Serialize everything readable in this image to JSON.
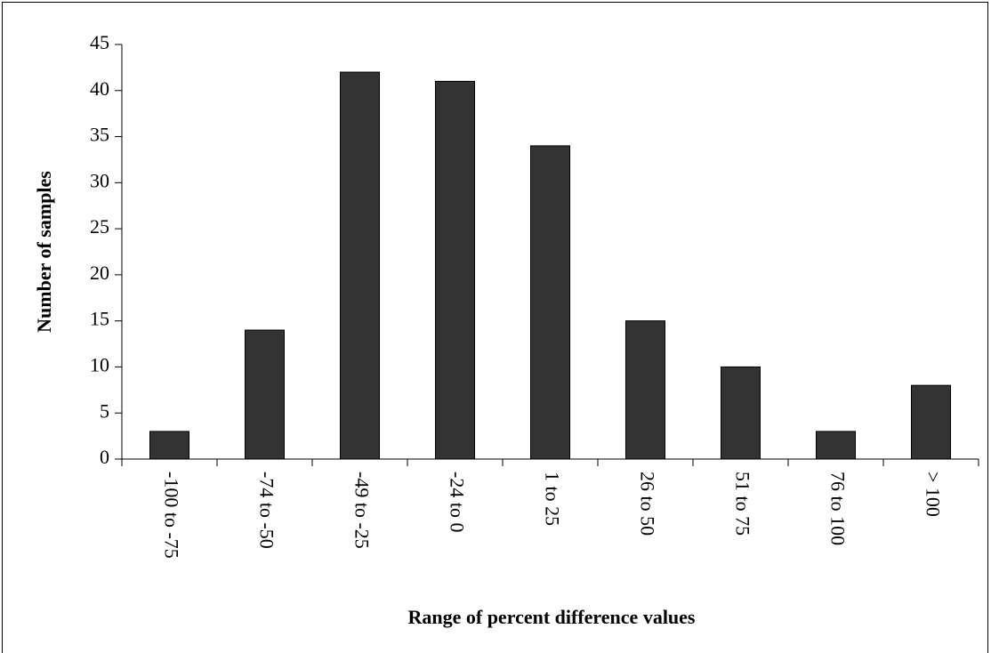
{
  "chart_data": {
    "type": "bar",
    "x_label": "Range of percent difference values",
    "y_label": "Number of samples",
    "categories": [
      "-100 to -75",
      "-74 to -50",
      "-49 to -25",
      "-24 to 0",
      "1 to 25",
      "26 to 50",
      "51 to 75",
      "76 to 100",
      "> 100"
    ],
    "values": [
      3,
      14,
      42,
      41,
      34,
      15,
      10,
      3,
      8
    ],
    "color": "#333333",
    "ylim": [
      0,
      45
    ],
    "yticks": [
      0,
      5,
      10,
      15,
      20,
      25,
      30,
      35,
      40,
      45
    ],
    "grid": false
  }
}
